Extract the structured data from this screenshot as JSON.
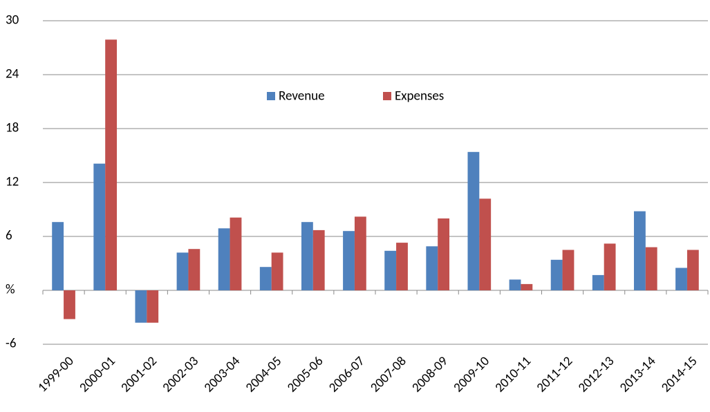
{
  "chart_data": {
    "type": "bar",
    "categories": [
      "1999-00",
      "2000-01",
      "2001-02",
      "2002-03",
      "2003-04",
      "2004-05",
      "2005-06",
      "2006-07",
      "2007-08",
      "2008-09",
      "2009-10",
      "2010-11",
      "2011-12",
      "2012-13",
      "2013-14",
      "2014-15"
    ],
    "series": [
      {
        "name": "Revenue",
        "color": "#4f81bd",
        "values": [
          7.6,
          14.1,
          -3.6,
          4.2,
          6.9,
          2.6,
          7.6,
          6.6,
          4.4,
          4.9,
          15.4,
          1.2,
          3.4,
          1.7,
          8.8,
          2.5
        ]
      },
      {
        "name": "Expenses",
        "color": "#c0504d",
        "values": [
          -3.2,
          27.9,
          -3.6,
          4.6,
          8.1,
          4.2,
          6.7,
          8.2,
          5.3,
          8.0,
          10.2,
          0.7,
          4.5,
          5.2,
          4.8,
          4.5
        ]
      }
    ],
    "ylim": [
      -6,
      30
    ],
    "yticks": [
      -6,
      {
        "value": 0,
        "label": "%"
      },
      6,
      12,
      18,
      24,
      30
    ],
    "grid": true
  }
}
